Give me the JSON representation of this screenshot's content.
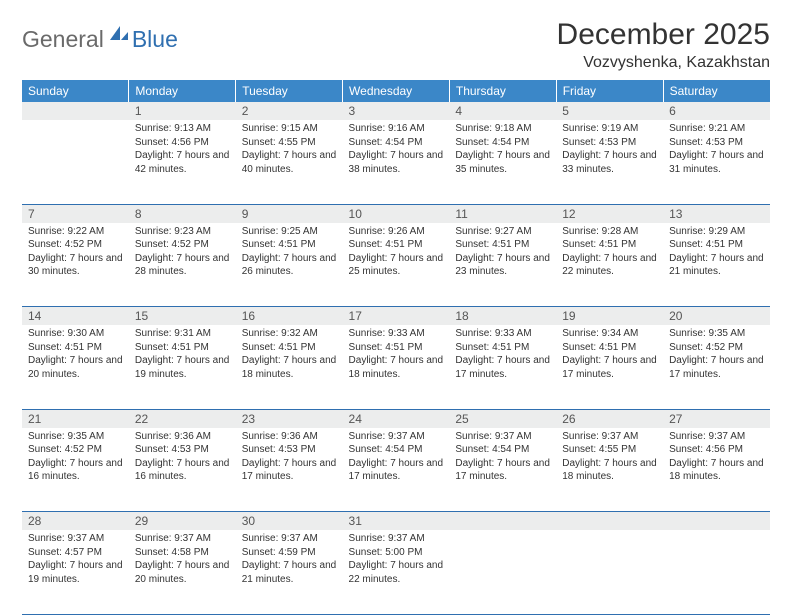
{
  "logo": {
    "general": "General",
    "blue": "Blue",
    "icon_color": "#2f6fb0"
  },
  "title": "December 2025",
  "location": "Vozvyshenka, Kazakhstan",
  "colors": {
    "header_bg": "#3b87c8",
    "header_text": "#ffffff",
    "daynum_bg": "#eceded",
    "border": "#2f6fb0",
    "text": "#333333"
  },
  "weekdays": [
    "Sunday",
    "Monday",
    "Tuesday",
    "Wednesday",
    "Thursday",
    "Friday",
    "Saturday"
  ],
  "weeks": [
    [
      null,
      {
        "n": "1",
        "sr": "9:13 AM",
        "ss": "4:56 PM",
        "dl": "7 hours and 42 minutes."
      },
      {
        "n": "2",
        "sr": "9:15 AM",
        "ss": "4:55 PM",
        "dl": "7 hours and 40 minutes."
      },
      {
        "n": "3",
        "sr": "9:16 AM",
        "ss": "4:54 PM",
        "dl": "7 hours and 38 minutes."
      },
      {
        "n": "4",
        "sr": "9:18 AM",
        "ss": "4:54 PM",
        "dl": "7 hours and 35 minutes."
      },
      {
        "n": "5",
        "sr": "9:19 AM",
        "ss": "4:53 PM",
        "dl": "7 hours and 33 minutes."
      },
      {
        "n": "6",
        "sr": "9:21 AM",
        "ss": "4:53 PM",
        "dl": "7 hours and 31 minutes."
      }
    ],
    [
      {
        "n": "7",
        "sr": "9:22 AM",
        "ss": "4:52 PM",
        "dl": "7 hours and 30 minutes."
      },
      {
        "n": "8",
        "sr": "9:23 AM",
        "ss": "4:52 PM",
        "dl": "7 hours and 28 minutes."
      },
      {
        "n": "9",
        "sr": "9:25 AM",
        "ss": "4:51 PM",
        "dl": "7 hours and 26 minutes."
      },
      {
        "n": "10",
        "sr": "9:26 AM",
        "ss": "4:51 PM",
        "dl": "7 hours and 25 minutes."
      },
      {
        "n": "11",
        "sr": "9:27 AM",
        "ss": "4:51 PM",
        "dl": "7 hours and 23 minutes."
      },
      {
        "n": "12",
        "sr": "9:28 AM",
        "ss": "4:51 PM",
        "dl": "7 hours and 22 minutes."
      },
      {
        "n": "13",
        "sr": "9:29 AM",
        "ss": "4:51 PM",
        "dl": "7 hours and 21 minutes."
      }
    ],
    [
      {
        "n": "14",
        "sr": "9:30 AM",
        "ss": "4:51 PM",
        "dl": "7 hours and 20 minutes."
      },
      {
        "n": "15",
        "sr": "9:31 AM",
        "ss": "4:51 PM",
        "dl": "7 hours and 19 minutes."
      },
      {
        "n": "16",
        "sr": "9:32 AM",
        "ss": "4:51 PM",
        "dl": "7 hours and 18 minutes."
      },
      {
        "n": "17",
        "sr": "9:33 AM",
        "ss": "4:51 PM",
        "dl": "7 hours and 18 minutes."
      },
      {
        "n": "18",
        "sr": "9:33 AM",
        "ss": "4:51 PM",
        "dl": "7 hours and 17 minutes."
      },
      {
        "n": "19",
        "sr": "9:34 AM",
        "ss": "4:51 PM",
        "dl": "7 hours and 17 minutes."
      },
      {
        "n": "20",
        "sr": "9:35 AM",
        "ss": "4:52 PM",
        "dl": "7 hours and 17 minutes."
      }
    ],
    [
      {
        "n": "21",
        "sr": "9:35 AM",
        "ss": "4:52 PM",
        "dl": "7 hours and 16 minutes."
      },
      {
        "n": "22",
        "sr": "9:36 AM",
        "ss": "4:53 PM",
        "dl": "7 hours and 16 minutes."
      },
      {
        "n": "23",
        "sr": "9:36 AM",
        "ss": "4:53 PM",
        "dl": "7 hours and 17 minutes."
      },
      {
        "n": "24",
        "sr": "9:37 AM",
        "ss": "4:54 PM",
        "dl": "7 hours and 17 minutes."
      },
      {
        "n": "25",
        "sr": "9:37 AM",
        "ss": "4:54 PM",
        "dl": "7 hours and 17 minutes."
      },
      {
        "n": "26",
        "sr": "9:37 AM",
        "ss": "4:55 PM",
        "dl": "7 hours and 18 minutes."
      },
      {
        "n": "27",
        "sr": "9:37 AM",
        "ss": "4:56 PM",
        "dl": "7 hours and 18 minutes."
      }
    ],
    [
      {
        "n": "28",
        "sr": "9:37 AM",
        "ss": "4:57 PM",
        "dl": "7 hours and 19 minutes."
      },
      {
        "n": "29",
        "sr": "9:37 AM",
        "ss": "4:58 PM",
        "dl": "7 hours and 20 minutes."
      },
      {
        "n": "30",
        "sr": "9:37 AM",
        "ss": "4:59 PM",
        "dl": "7 hours and 21 minutes."
      },
      {
        "n": "31",
        "sr": "9:37 AM",
        "ss": "5:00 PM",
        "dl": "7 hours and 22 minutes."
      },
      null,
      null,
      null
    ]
  ],
  "labels": {
    "sunrise": "Sunrise: ",
    "sunset": "Sunset: ",
    "daylight": "Daylight: "
  }
}
